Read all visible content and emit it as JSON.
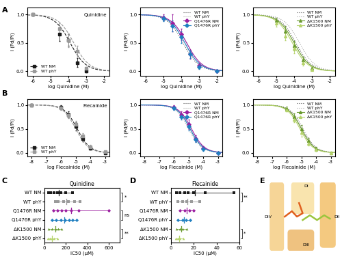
{
  "panel_labels": [
    "A",
    "B",
    "C",
    "D",
    "E"
  ],
  "chart_data": [
    {
      "type": "dose_response",
      "compound": "Quinidine",
      "xlabel": "log Quinidine (M)",
      "ylabel": "I (Pd/Pi)",
      "xlim": [
        -6.3,
        -1.7
      ],
      "xticks": [
        -6,
        -5,
        -4,
        -3,
        -2
      ],
      "ylim": [
        -0.08,
        1.12
      ],
      "yticks": [
        {
          "value": 0,
          "label": "0.0"
        },
        {
          "value": 0.5,
          "label": "0.5"
        },
        {
          "value": 1,
          "label": "1.0"
        }
      ],
      "legend": "lower left",
      "series": [
        {
          "name": "WT NM",
          "color": "#1a1a1a",
          "marker": "square",
          "line_style": "dashed",
          "x": [
            -6,
            -4.5,
            -4,
            -3.5,
            -3
          ],
          "values": [
            1.0,
            0.65,
            0.55,
            0.15,
            0.0
          ],
          "errors": [
            0.02,
            0.12,
            0.1,
            0.08,
            0.02
          ],
          "fit": {
            "log_ic50": -3.9,
            "hill": 1.0
          }
        },
        {
          "name": "WT phY",
          "color": "#9a9a9a",
          "marker": "square",
          "line_style": "dashed",
          "x": [
            -6,
            -4.5,
            -4,
            -3.5,
            -3
          ],
          "values": [
            1.0,
            0.75,
            0.55,
            0.35,
            0.05
          ],
          "errors": [
            0.02,
            0.1,
            0.12,
            0.1,
            0.03
          ],
          "fit": {
            "log_ic50": -3.7,
            "hill": 1.0
          }
        }
      ]
    },
    {
      "type": "dose_response",
      "xlabel": "log Quinidine (M)",
      "ylabel": "I (Pd/Pi)",
      "xlim": [
        -6.3,
        -1.7
      ],
      "xticks": [
        -6,
        -5,
        -4,
        -3,
        -2
      ],
      "ylim": [
        -0.08,
        1.12
      ],
      "yticks": [
        {
          "value": 0,
          "label": "0.0"
        },
        {
          "value": 0.5,
          "label": "0.5"
        },
        {
          "value": 1,
          "label": "1.0"
        }
      ],
      "legend": "upper right",
      "series": [
        {
          "name": "WT NM",
          "color": "#555555",
          "line_style": "dotted",
          "fit": {
            "log_ic50": -3.9,
            "hill": 1.0
          }
        },
        {
          "name": "WT phY",
          "color": "#aaaaaa",
          "line_style": "dotted",
          "fit": {
            "log_ic50": -3.7,
            "hill": 1.0
          }
        },
        {
          "name": "Q1476R NM",
          "color": "#9b1fa0",
          "marker": "diamond",
          "line_style": "solid",
          "x": [
            -5,
            -4.5,
            -4,
            -3.5,
            -3,
            -2
          ],
          "values": [
            0.95,
            0.85,
            0.65,
            0.3,
            0.1,
            0.0
          ],
          "errors": [
            0.05,
            0.15,
            0.1,
            0.08,
            0.05,
            0.02
          ],
          "fit": {
            "log_ic50": -3.7,
            "hill": 1.0
          }
        },
        {
          "name": "Q1476R phY",
          "color": "#1f7fc0",
          "marker": "diamond",
          "line_style": "solid",
          "x": [
            -5,
            -4.5,
            -4,
            -3.5,
            -3,
            -2
          ],
          "values": [
            0.93,
            0.8,
            0.6,
            0.3,
            0.08,
            0.0
          ],
          "errors": [
            0.05,
            0.1,
            0.1,
            0.07,
            0.04,
            0.02
          ],
          "fit": {
            "log_ic50": -3.8,
            "hill": 1.0
          }
        }
      ]
    },
    {
      "type": "dose_response",
      "xlabel": "log Quinidine (M)",
      "ylabel": "I (Pd/Pi)",
      "xlim": [
        -6.3,
        -1.7
      ],
      "xticks": [
        -6,
        -5,
        -4,
        -3,
        -2
      ],
      "ylim": [
        -0.08,
        1.12
      ],
      "yticks": [
        {
          "value": 0,
          "label": "0.0"
        },
        {
          "value": 0.5,
          "label": "0.5"
        },
        {
          "value": 1,
          "label": "1.0"
        }
      ],
      "legend": "upper right",
      "series": [
        {
          "name": "WT NM",
          "color": "#555555",
          "line_style": "dotted",
          "fit": {
            "log_ic50": -3.9,
            "hill": 1.0
          }
        },
        {
          "name": "WT phY",
          "color": "#aaaaaa",
          "line_style": "dotted",
          "fit": {
            "log_ic50": -3.7,
            "hill": 1.0
          }
        },
        {
          "name": "ΔK1500 NM",
          "color": "#6a9a2f",
          "marker": "triangle",
          "line_style": "solid",
          "x": [
            -5,
            -4.5,
            -4,
            -3.5,
            -3
          ],
          "values": [
            0.9,
            0.7,
            0.45,
            0.2,
            0.05
          ],
          "errors": [
            0.05,
            0.1,
            0.08,
            0.06,
            0.03
          ],
          "fit": {
            "log_ic50": -4.0,
            "hill": 1.0
          }
        },
        {
          "name": "ΔK1500 phY",
          "color": "#b5d36b",
          "marker": "triangle",
          "line_style": "solid",
          "x": [
            -5,
            -4.5,
            -4,
            -3.5,
            -3
          ],
          "values": [
            0.85,
            0.62,
            0.4,
            0.15,
            0.03
          ],
          "errors": [
            0.06,
            0.08,
            0.08,
            0.05,
            0.02
          ],
          "fit": {
            "log_ic50": -4.1,
            "hill": 1.0
          }
        }
      ]
    },
    {
      "type": "dose_response",
      "compound": "Flecainide",
      "xlabel": "log Flecainide (M)",
      "ylabel": "I (Pd/Pi)",
      "xlim": [
        -8.3,
        -2.7
      ],
      "xticks": [
        -8,
        -7,
        -6,
        -5,
        -4,
        -3
      ],
      "ylim": [
        -0.08,
        1.12
      ],
      "yticks": [
        {
          "value": 0,
          "label": "0.0"
        },
        {
          "value": 0.5,
          "label": "0.5"
        },
        {
          "value": 1,
          "label": "1.0"
        }
      ],
      "legend": "lower left",
      "series": [
        {
          "name": "WT NM",
          "color": "#1a1a1a",
          "marker": "square",
          "line_style": "dashed",
          "x": [
            -8,
            -6,
            -5.5,
            -5,
            -4.5,
            -4,
            -3
          ],
          "values": [
            1.0,
            0.95,
            0.8,
            0.55,
            0.3,
            0.1,
            0.0
          ],
          "errors": [
            0.02,
            0.04,
            0.06,
            0.08,
            0.06,
            0.04,
            0.02
          ],
          "fit": {
            "log_ic50": -4.9,
            "hill": 1.0
          }
        },
        {
          "name": "WT phY",
          "color": "#9a9a9a",
          "marker": "square",
          "line_style": "dashed",
          "x": [
            -8,
            -6,
            -5.5,
            -5,
            -4.5,
            -4,
            -3
          ],
          "values": [
            1.0,
            0.93,
            0.78,
            0.6,
            0.35,
            0.12,
            0.02
          ],
          "errors": [
            0.02,
            0.04,
            0.06,
            0.07,
            0.06,
            0.04,
            0.02
          ],
          "fit": {
            "log_ic50": -5.0,
            "hill": 1.0
          }
        }
      ]
    },
    {
      "type": "dose_response",
      "xlabel": "log Flecainide (M)",
      "ylabel": "I (Pd/Pi)",
      "xlim": [
        -8.3,
        -2.7
      ],
      "xticks": [
        -8,
        -7,
        -6,
        -5,
        -4,
        -3
      ],
      "ylim": [
        -0.08,
        1.12
      ],
      "yticks": [
        {
          "value": 0,
          "label": "0.0"
        },
        {
          "value": 0.5,
          "label": "0.5"
        },
        {
          "value": 1,
          "label": "1.0"
        }
      ],
      "legend": "upper right",
      "series": [
        {
          "name": "WT NM",
          "color": "#555555",
          "line_style": "dotted",
          "fit": {
            "log_ic50": -4.9,
            "hill": 1.0
          }
        },
        {
          "name": "WT phY",
          "color": "#aaaaaa",
          "line_style": "dotted",
          "fit": {
            "log_ic50": -5.0,
            "hill": 1.0
          }
        },
        {
          "name": "Q1476R NM",
          "color": "#9b1fa0",
          "marker": "diamond",
          "line_style": "solid",
          "x": [
            -6,
            -5.5,
            -5,
            -4.5,
            -4,
            -3
          ],
          "values": [
            0.95,
            0.8,
            0.6,
            0.3,
            0.1,
            0.0
          ],
          "errors": [
            0.04,
            0.06,
            0.1,
            0.07,
            0.04,
            0.02
          ],
          "fit": {
            "log_ic50": -4.8,
            "hill": 1.0
          }
        },
        {
          "name": "Q1476R phY",
          "color": "#1f7fc0",
          "marker": "diamond",
          "line_style": "solid",
          "x": [
            -6,
            -5.5,
            -5,
            -4.5,
            -4,
            -3
          ],
          "values": [
            0.93,
            0.75,
            0.55,
            0.28,
            0.08,
            0.0
          ],
          "errors": [
            0.04,
            0.06,
            0.08,
            0.06,
            0.04,
            0.02
          ],
          "fit": {
            "log_ic50": -4.9,
            "hill": 1.0
          }
        }
      ]
    },
    {
      "type": "dose_response",
      "xlabel": "log Flecainide (M)",
      "ylabel": "I (Pd/Pi)",
      "xlim": [
        -8.3,
        -2.7
      ],
      "xticks": [
        -8,
        -7,
        -6,
        -5,
        -4,
        -3
      ],
      "ylim": [
        -0.08,
        1.12
      ],
      "yticks": [
        {
          "value": 0,
          "label": "0.0"
        },
        {
          "value": 0.5,
          "label": "0.5"
        },
        {
          "value": 1,
          "label": "1.0"
        }
      ],
      "legend": "upper right",
      "series": [
        {
          "name": "WT NM",
          "color": "#555555",
          "line_style": "dotted",
          "fit": {
            "log_ic50": -4.9,
            "hill": 1.0
          }
        },
        {
          "name": "WT phY",
          "color": "#aaaaaa",
          "line_style": "dotted",
          "fit": {
            "log_ic50": -5.0,
            "hill": 1.0
          }
        },
        {
          "name": "ΔK1500 NM",
          "color": "#6a9a2f",
          "marker": "triangle",
          "line_style": "solid",
          "x": [
            -6,
            -5.5,
            -5,
            -4.5,
            -4,
            -3
          ],
          "values": [
            0.92,
            0.75,
            0.5,
            0.25,
            0.08,
            0.0
          ],
          "errors": [
            0.04,
            0.07,
            0.08,
            0.06,
            0.04,
            0.02
          ],
          "fit": {
            "log_ic50": -5.0,
            "hill": 1.0
          }
        },
        {
          "name": "ΔK1500 phY",
          "color": "#b5d36b",
          "marker": "triangle",
          "line_style": "solid",
          "x": [
            -6,
            -5.5,
            -5,
            -4.5,
            -4,
            -3
          ],
          "values": [
            0.9,
            0.7,
            0.42,
            0.2,
            0.06,
            0.0
          ],
          "errors": [
            0.04,
            0.07,
            0.08,
            0.05,
            0.03,
            0.02
          ],
          "fit": {
            "log_ic50": -5.1,
            "hill": 1.0
          }
        }
      ]
    },
    {
      "type": "strip",
      "title": "Quinidine",
      "xlabel": "IC50 (µM)",
      "xlim": [
        0,
        700
      ],
      "xticks": [
        0,
        200,
        400,
        600
      ],
      "series": [
        {
          "name": "WT NM",
          "color": "#1a1a1a",
          "marker": "square",
          "values": [
            40,
            60,
            90,
            120,
            150,
            200,
            260
          ]
        },
        {
          "name": "WT phY",
          "color": "#9a9a9a",
          "marker": "square",
          "values": [
            100,
            130,
            180,
            220,
            280,
            330
          ]
        },
        {
          "name": "Q1476R NM",
          "color": "#9b1fa0",
          "marker": "diamond",
          "values": [
            80,
            120,
            160,
            200,
            250,
            320,
            600
          ]
        },
        {
          "name": "Q1476R phY",
          "color": "#1f7fc0",
          "marker": "diamond",
          "values": [
            70,
            110,
            150,
            190,
            230,
            260,
            300
          ]
        },
        {
          "name": "ΔK1500 NM",
          "color": "#6a9a2f",
          "marker": "triangle",
          "values": [
            40,
            70,
            100,
            130,
            160
          ]
        },
        {
          "name": "ΔK1500 phY",
          "color": "#b5d36b",
          "marker": "triangle",
          "values": [
            30,
            50,
            70,
            90,
            120
          ]
        }
      ],
      "annotations": [
        {
          "text": "*",
          "from": "WT NM",
          "to": "WT phY"
        },
        {
          "text": "ns",
          "from": "Q1476R NM",
          "to": "Q1476R phY"
        },
        {
          "text": "**",
          "from": "ΔK1500 NM",
          "to": "ΔK1500 phY"
        }
      ]
    },
    {
      "type": "strip",
      "title": "Flecainide",
      "xlabel": "IC50 (µM)",
      "xlim": [
        0,
        60
      ],
      "xticks": [
        0,
        20,
        40,
        60
      ],
      "series": [
        {
          "name": "WT NM",
          "color": "#1a1a1a",
          "marker": "square",
          "values": [
            5,
            8,
            12,
            15,
            20,
            30,
            55
          ]
        },
        {
          "name": "WT phY",
          "color": "#9a9a9a",
          "marker": "square",
          "values": [
            6,
            10,
            14,
            18,
            25
          ]
        },
        {
          "name": "Q1476R NM",
          "color": "#9b1fa0",
          "marker": "diamond",
          "values": [
            8,
            12,
            16,
            20
          ]
        },
        {
          "name": "Q1476R phY",
          "color": "#1f7fc0",
          "marker": "diamond",
          "values": [
            6,
            10,
            13,
            17
          ]
        },
        {
          "name": "ΔK1500 NM",
          "color": "#6a9a2f",
          "marker": "triangle",
          "values": [
            5,
            8,
            10,
            14
          ]
        },
        {
          "name": "ΔK1500 phY",
          "color": "#b5d36b",
          "marker": "triangle",
          "values": [
            4,
            6,
            8,
            11
          ]
        }
      ],
      "annotations": [
        {
          "text": "**",
          "from": "WT NM",
          "to": "WT phY"
        },
        {
          "text": "*",
          "from": "ΔK1500 NM",
          "to": "ΔK1500 phY"
        }
      ]
    }
  ],
  "structure": {
    "labels": [
      "DIV",
      "DI",
      "DII",
      "DIII"
    ]
  }
}
